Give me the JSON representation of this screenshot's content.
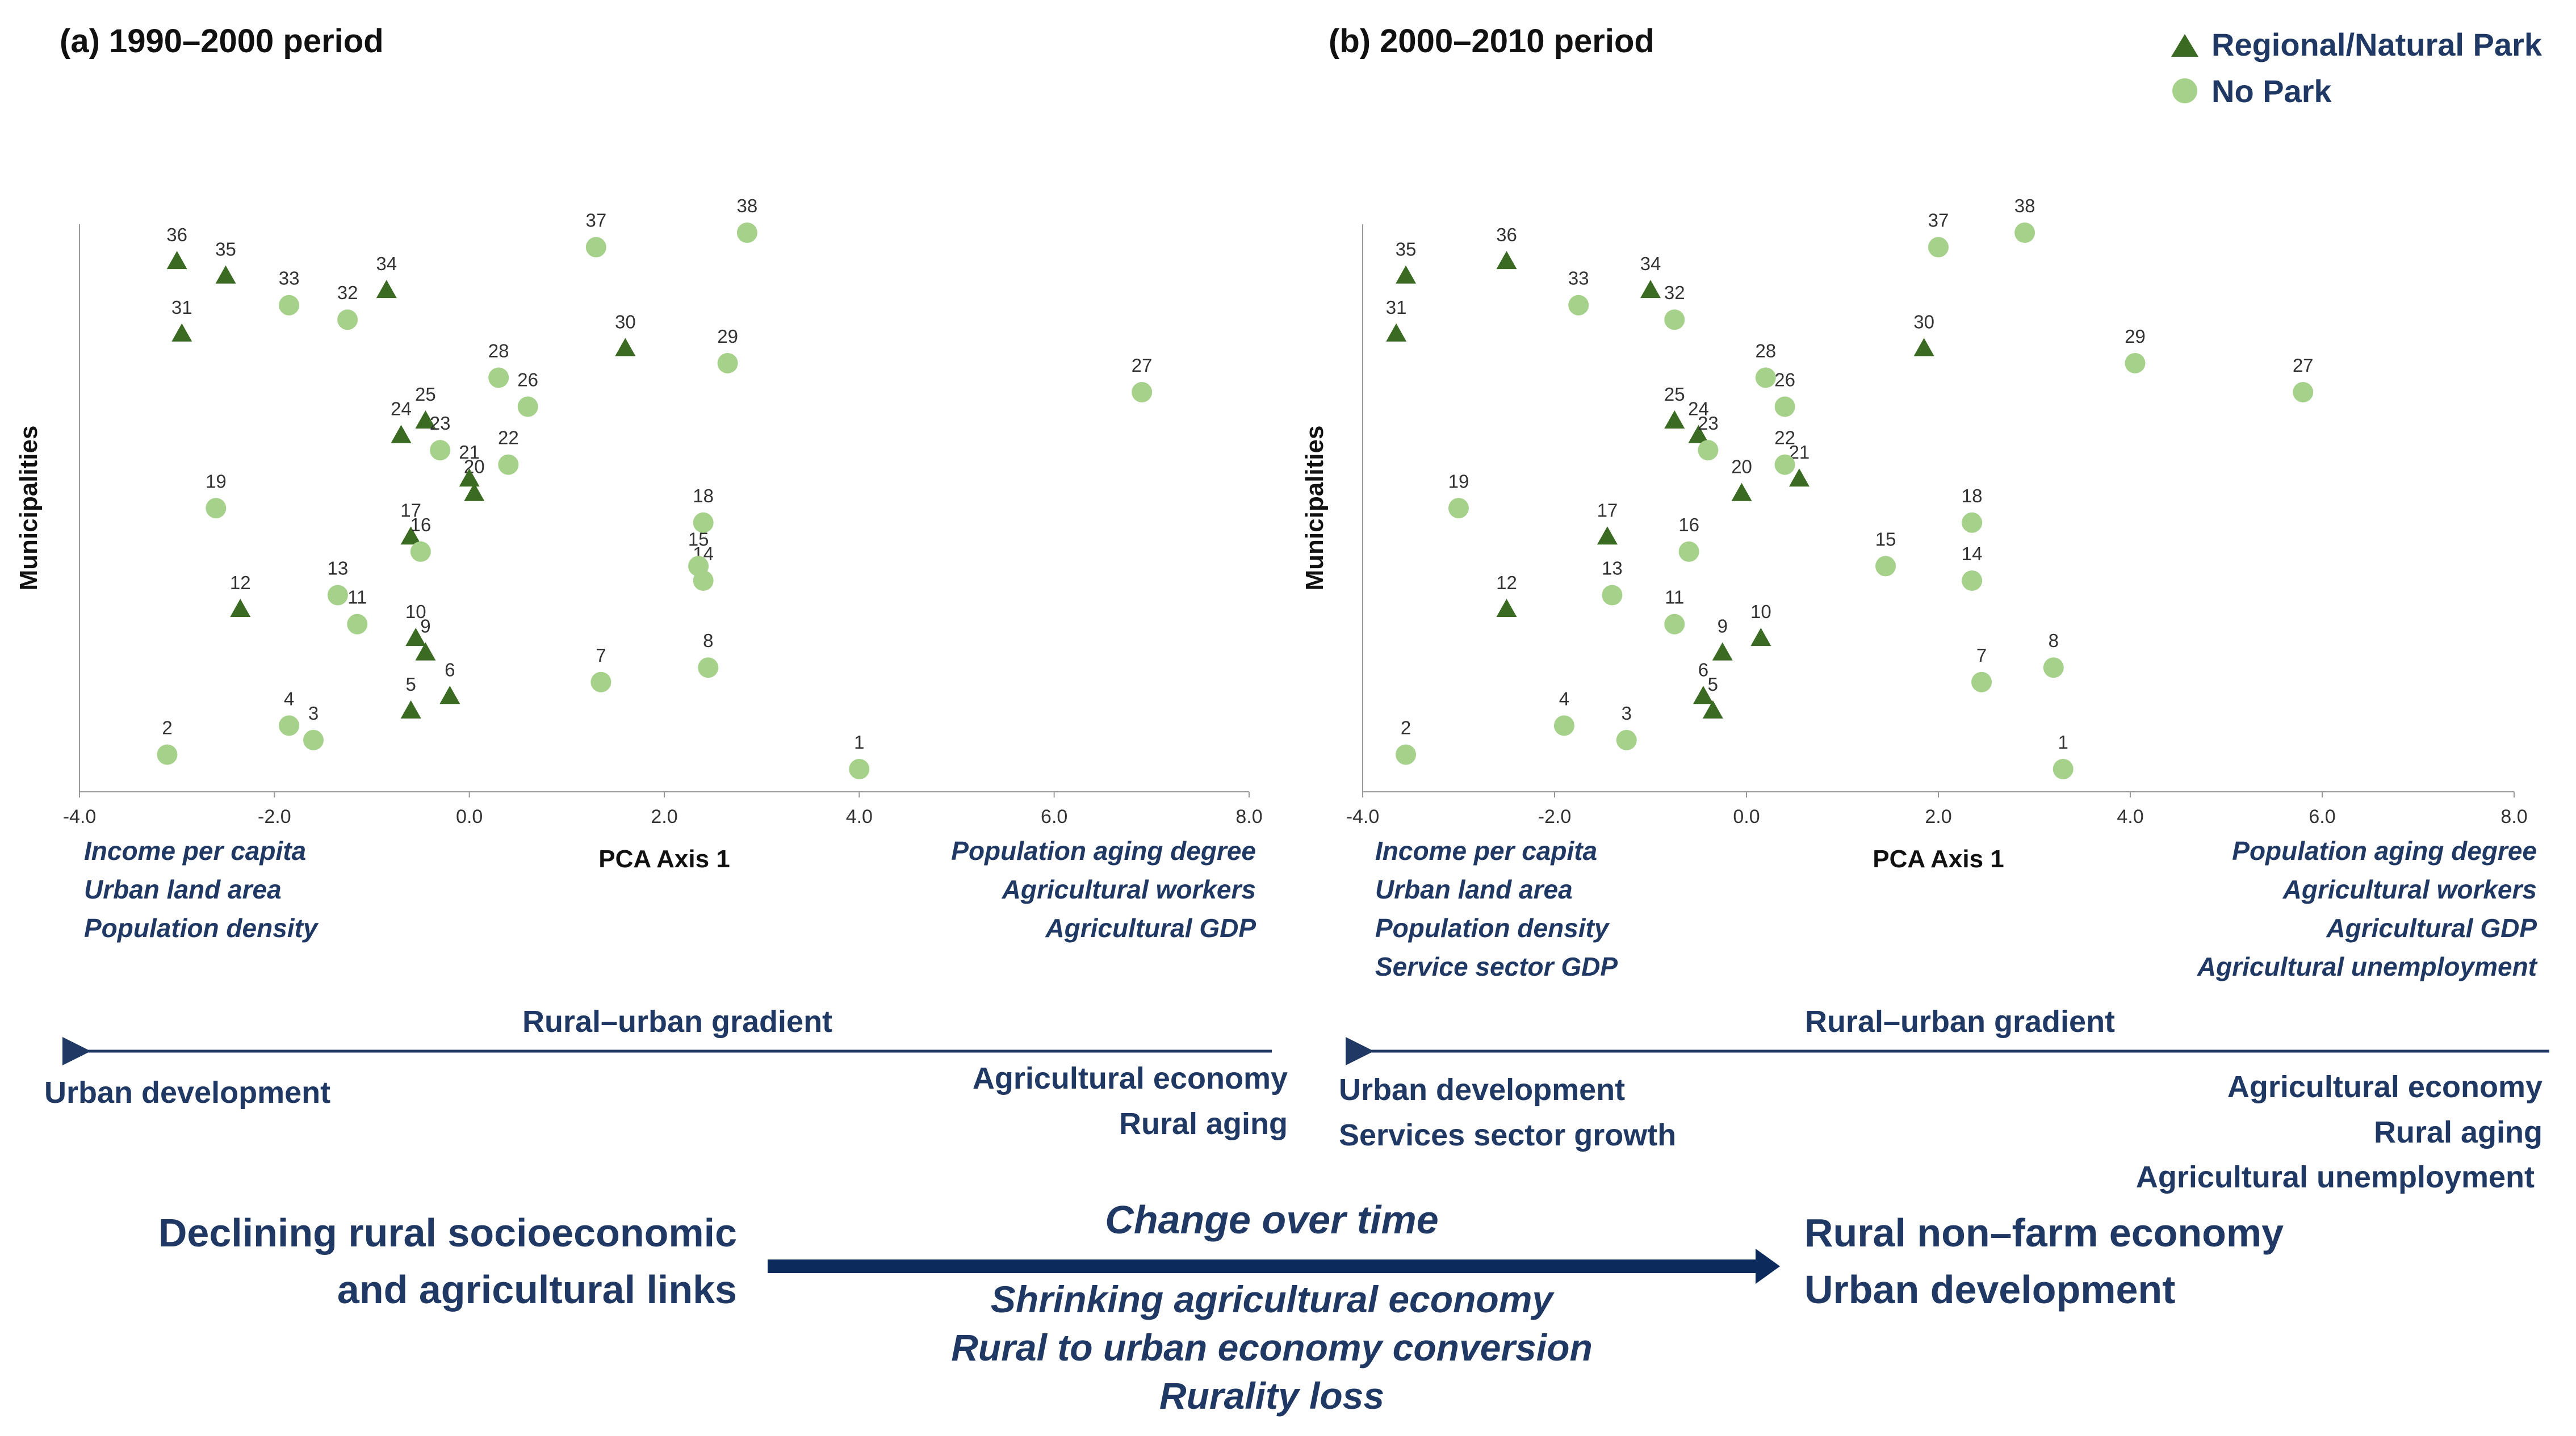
{
  "colors": {
    "park": "#3b6b22",
    "no_park": "#a6d18a",
    "text_dark": "#1f3864",
    "arrow": "#0d2a5c",
    "axis": "#999999"
  },
  "legend": {
    "park_label": "Regional/Natural Park",
    "no_park_label": "No Park",
    "park_icon": "dark-green-triangle",
    "no_park_icon": "light-green-circle"
  },
  "chart_data": [
    {
      "type": "scatter",
      "title": "(a) 1990–2000 period",
      "xlabel": "PCA Axis 1",
      "ylabel": "Municipalities",
      "xlim": [
        -4.0,
        8.0
      ],
      "xticks": [
        "-4.0",
        "-2.0",
        "0.0",
        "2.0",
        "4.0",
        "6.0",
        "8.0"
      ],
      "series": [
        {
          "name": "Regional/Natural Park",
          "points": [
            {
              "label": "5",
              "x": -0.6,
              "y": 5
            },
            {
              "label": "6",
              "x": -0.2,
              "y": 6
            },
            {
              "label": "9",
              "x": -0.45,
              "y": 9
            },
            {
              "label": "10",
              "x": -0.55,
              "y": 10
            },
            {
              "label": "12",
              "x": -2.35,
              "y": 12
            },
            {
              "label": "17",
              "x": -0.6,
              "y": 17
            },
            {
              "label": "20",
              "x": 0.05,
              "y": 20
            },
            {
              "label": "21",
              "x": 0.0,
              "y": 21
            },
            {
              "label": "24",
              "x": -0.7,
              "y": 24
            },
            {
              "label": "25",
              "x": -0.45,
              "y": 25
            },
            {
              "label": "30",
              "x": 1.6,
              "y": 30
            },
            {
              "label": "31",
              "x": -2.95,
              "y": 31
            },
            {
              "label": "34",
              "x": -0.85,
              "y": 34
            },
            {
              "label": "35",
              "x": -2.5,
              "y": 35
            },
            {
              "label": "36",
              "x": -3.0,
              "y": 36
            }
          ]
        },
        {
          "name": "No Park",
          "points": [
            {
              "label": "1",
              "x": 4.0,
              "y": 1
            },
            {
              "label": "2",
              "x": -3.1,
              "y": 2
            },
            {
              "label": "3",
              "x": -1.6,
              "y": 3
            },
            {
              "label": "4",
              "x": -1.85,
              "y": 4
            },
            {
              "label": "7",
              "x": 1.35,
              "y": 7
            },
            {
              "label": "8",
              "x": 2.45,
              "y": 8
            },
            {
              "label": "11",
              "x": -1.15,
              "y": 11
            },
            {
              "label": "13",
              "x": -1.35,
              "y": 13
            },
            {
              "label": "14",
              "x": 2.4,
              "y": 14
            },
            {
              "label": "15",
              "x": 2.35,
              "y": 15
            },
            {
              "label": "16",
              "x": -0.5,
              "y": 16
            },
            {
              "label": "18",
              "x": 2.4,
              "y": 18
            },
            {
              "label": "19",
              "x": -2.6,
              "y": 19
            },
            {
              "label": "22",
              "x": 0.4,
              "y": 22
            },
            {
              "label": "23",
              "x": -0.3,
              "y": 23
            },
            {
              "label": "26",
              "x": 0.6,
              "y": 26
            },
            {
              "label": "27",
              "x": 6.9,
              "y": 27
            },
            {
              "label": "28",
              "x": 0.3,
              "y": 28
            },
            {
              "label": "29",
              "x": 2.65,
              "y": 29
            },
            {
              "label": "32",
              "x": -1.25,
              "y": 32
            },
            {
              "label": "33",
              "x": -1.85,
              "y": 33
            },
            {
              "label": "37",
              "x": 1.3,
              "y": 37
            },
            {
              "label": "38",
              "x": 2.85,
              "y": 38
            }
          ]
        }
      ]
    },
    {
      "type": "scatter",
      "title": "(b) 2000–2010 period",
      "xlabel": "PCA Axis 1",
      "ylabel": "Municipalities",
      "xlim": [
        -4.0,
        8.0
      ],
      "xticks": [
        "-4.0",
        "-2.0",
        "0.0",
        "2.0",
        "4.0",
        "6.0",
        "8.0"
      ],
      "series": [
        {
          "name": "Regional/Natural Park",
          "points": [
            {
              "label": "5",
              "x": -0.35,
              "y": 5
            },
            {
              "label": "6",
              "x": -0.45,
              "y": 6
            },
            {
              "label": "9",
              "x": -0.25,
              "y": 9
            },
            {
              "label": "10",
              "x": 0.15,
              "y": 10
            },
            {
              "label": "12",
              "x": -2.5,
              "y": 12
            },
            {
              "label": "17",
              "x": -1.45,
              "y": 17
            },
            {
              "label": "20",
              "x": -0.05,
              "y": 20
            },
            {
              "label": "21",
              "x": 0.55,
              "y": 21
            },
            {
              "label": "24",
              "x": -0.5,
              "y": 24
            },
            {
              "label": "25",
              "x": -0.75,
              "y": 25
            },
            {
              "label": "30",
              "x": 1.85,
              "y": 30
            },
            {
              "label": "31",
              "x": -3.65,
              "y": 31
            },
            {
              "label": "34",
              "x": -1.0,
              "y": 34
            },
            {
              "label": "35",
              "x": -3.55,
              "y": 35
            },
            {
              "label": "36",
              "x": -2.5,
              "y": 36
            }
          ]
        },
        {
          "name": "No Park",
          "points": [
            {
              "label": "1",
              "x": 3.3,
              "y": 1
            },
            {
              "label": "2",
              "x": -3.55,
              "y": 2
            },
            {
              "label": "3",
              "x": -1.25,
              "y": 3
            },
            {
              "label": "4",
              "x": -1.9,
              "y": 4
            },
            {
              "label": "7",
              "x": 2.45,
              "y": 7
            },
            {
              "label": "8",
              "x": 3.2,
              "y": 8
            },
            {
              "label": "11",
              "x": -0.75,
              "y": 11
            },
            {
              "label": "13",
              "x": -1.4,
              "y": 13
            },
            {
              "label": "14",
              "x": 2.35,
              "y": 14
            },
            {
              "label": "15",
              "x": 1.45,
              "y": 15
            },
            {
              "label": "16",
              "x": -0.6,
              "y": 16
            },
            {
              "label": "18",
              "x": 2.35,
              "y": 18
            },
            {
              "label": "19",
              "x": -3.0,
              "y": 19
            },
            {
              "label": "22",
              "x": 0.4,
              "y": 22
            },
            {
              "label": "23",
              "x": -0.4,
              "y": 23
            },
            {
              "label": "26",
              "x": 0.4,
              "y": 26
            },
            {
              "label": "27",
              "x": 5.8,
              "y": 27
            },
            {
              "label": "28",
              "x": 0.2,
              "y": 28
            },
            {
              "label": "29",
              "x": 4.05,
              "y": 29
            },
            {
              "label": "32",
              "x": -0.75,
              "y": 32
            },
            {
              "label": "33",
              "x": -1.75,
              "y": 33
            },
            {
              "label": "37",
              "x": 2.0,
              "y": 37
            },
            {
              "label": "38",
              "x": 2.9,
              "y": 38
            }
          ]
        }
      ]
    }
  ],
  "panel_a": {
    "left_vars": [
      "Income per capita",
      "Urban land area",
      "Population density"
    ],
    "right_vars": [
      "Population aging degree",
      "Agricultural workers",
      "Agricultural GDP"
    ],
    "gradient_label": "Rural–urban gradient",
    "left_pole": [
      "Urban development"
    ],
    "right_pole": [
      "Agricultural economy",
      "Rural aging"
    ]
  },
  "panel_b": {
    "left_vars": [
      "Income per capita",
      "Urban land area",
      "Population density",
      "Service sector GDP"
    ],
    "right_vars": [
      "Population aging degree",
      "Agricultural workers",
      "Agricultural GDP",
      "Agricultural unemployment"
    ],
    "gradient_label": "Rural–urban gradient",
    "left_pole": [
      "Urban development",
      "Services sector growth"
    ],
    "right_pole": [
      "Agricultural economy",
      "Rural aging",
      "Agricultural unemployment"
    ]
  },
  "summary": {
    "left": [
      "Declining rural socioeconomic",
      "and agricultural links"
    ],
    "center_title": "Change over time",
    "center_sub": [
      "Shrinking agricultural economy",
      "Rural to urban economy conversion",
      "Rurality loss"
    ],
    "right": [
      "Rural non–farm economy",
      "Urban development"
    ]
  }
}
